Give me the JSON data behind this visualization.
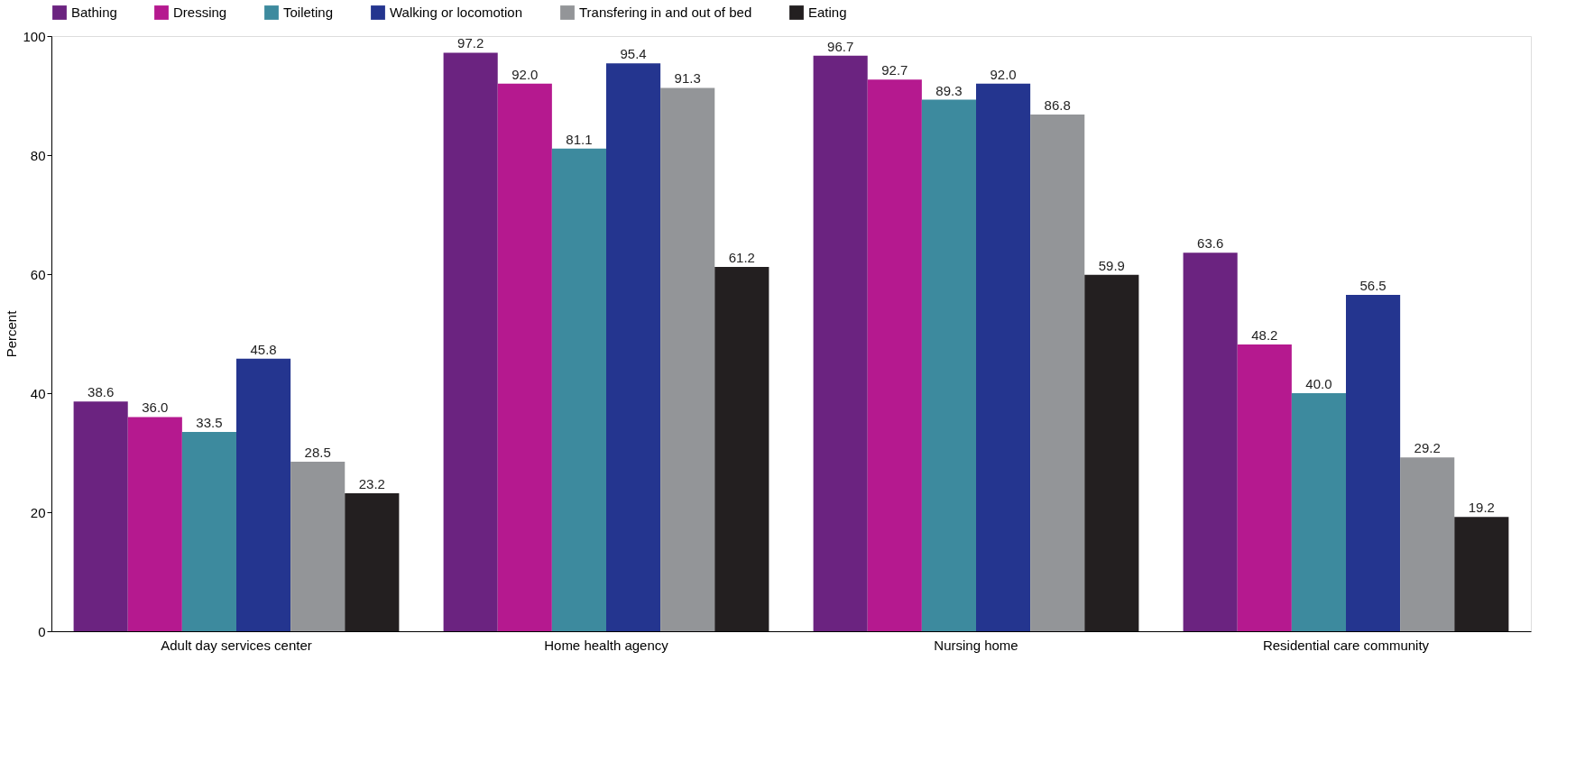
{
  "chart_data": {
    "type": "bar",
    "ylabel": "Percent",
    "categories": [
      "Adult day services center",
      "Home health agency",
      "Nursing home",
      "Residential care community"
    ],
    "series": [
      {
        "name": "Bathing",
        "color": "#6b2380",
        "values": [
          38.6,
          97.2,
          96.7,
          63.6
        ],
        "value_labels": [
          "38.6",
          "97.2",
          "96.7",
          "63.6"
        ]
      },
      {
        "name": "Dressing",
        "color": "#b5198f",
        "values": [
          36.0,
          92.0,
          92.7,
          48.2
        ],
        "value_labels": [
          "36.0",
          "92.0",
          "92.7",
          "48.2"
        ]
      },
      {
        "name": "Toileting",
        "color": "#3d8a9e",
        "values": [
          33.5,
          81.1,
          89.3,
          40.0
        ],
        "value_labels": [
          "33.5",
          "81.1",
          "89.3",
          "40.0"
        ]
      },
      {
        "name": "Walking or locomotion",
        "color": "#24358f",
        "values": [
          45.8,
          95.4,
          92.0,
          56.5
        ],
        "value_labels": [
          "45.8",
          "95.4",
          "92.0",
          "56.5"
        ]
      },
      {
        "name": "Transfering in and out of bed",
        "color": "#939598",
        "values": [
          28.5,
          91.3,
          86.8,
          29.2
        ],
        "value_labels": [
          "28.5",
          "91.3",
          "86.8",
          "29.2"
        ]
      },
      {
        "name": "Eating",
        "color": "#231f20",
        "values": [
          23.2,
          61.2,
          59.9,
          19.2
        ],
        "value_labels": [
          "23.2",
          "61.2",
          "59.9",
          "19.2"
        ]
      }
    ],
    "ylim": [
      0,
      100
    ],
    "yticks": [
      0,
      20,
      40,
      60,
      80,
      100
    ],
    "grid": false,
    "legend": "top"
  }
}
